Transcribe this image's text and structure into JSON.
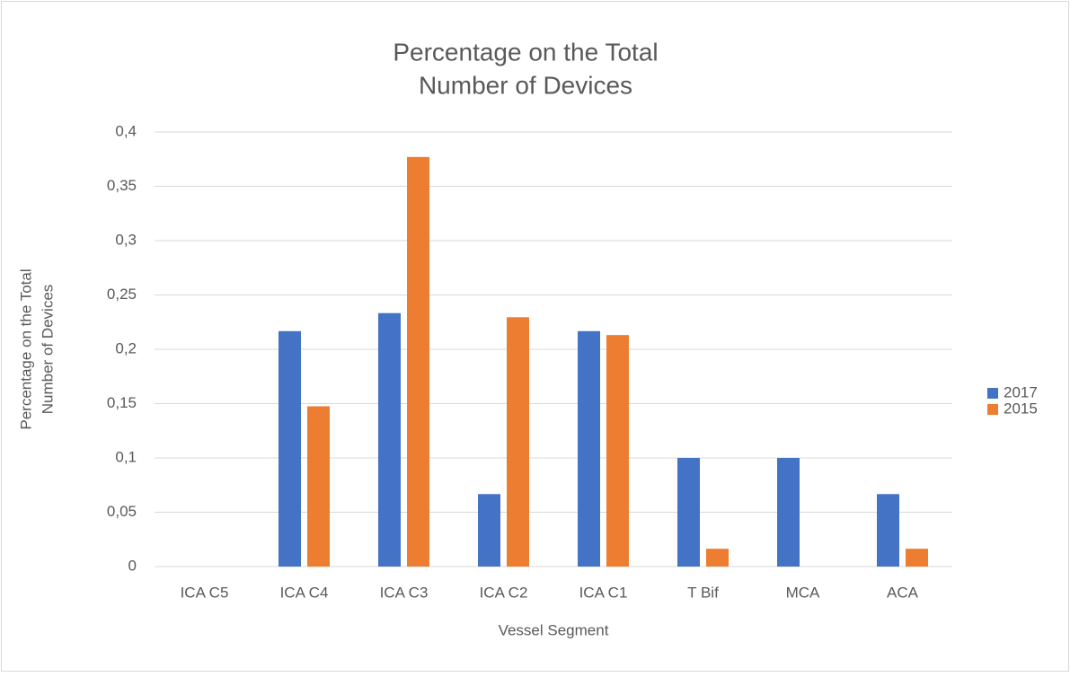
{
  "chart_data": {
    "type": "bar",
    "title": [
      "Percentage on the Total",
      "Number of Devices"
    ],
    "x_label": "Vessel Segment",
    "y_label": [
      "Percentage on the Total",
      "Number of Devices"
    ],
    "categories": [
      "ICA C5",
      "ICA C4",
      "ICA C3",
      "ICA C2",
      "ICA C1",
      "T Bif",
      "MCA",
      "ACA"
    ],
    "series": [
      {
        "name": "2017",
        "color": "#4472c4",
        "values": [
          0,
          0.2167,
          0.2333,
          0.0667,
          0.2167,
          0.1,
          0.1,
          0.0667
        ]
      },
      {
        "name": "2015",
        "color": "#ed7d31",
        "values": [
          0,
          0.1475,
          0.377,
          0.2295,
          0.2131,
          0.0164,
          0,
          0.0164
        ]
      }
    ],
    "ylim": [
      0,
      0.4
    ],
    "yticks": [
      0,
      {
        "value": 0.05,
        "label": "0,05"
      },
      {
        "value": 0.1,
        "label": "0,1"
      },
      {
        "value": 0.15,
        "label": "0,15"
      },
      {
        "value": 0.2,
        "label": "0,2"
      },
      {
        "value": 0.25,
        "label": "0,25"
      },
      {
        "value": 0.3,
        "label": "0,3"
      },
      {
        "value": 0.35,
        "label": "0,35"
      },
      {
        "value": 0.4,
        "label": "0,4"
      }
    ],
    "grid": true,
    "legend": "right"
  }
}
